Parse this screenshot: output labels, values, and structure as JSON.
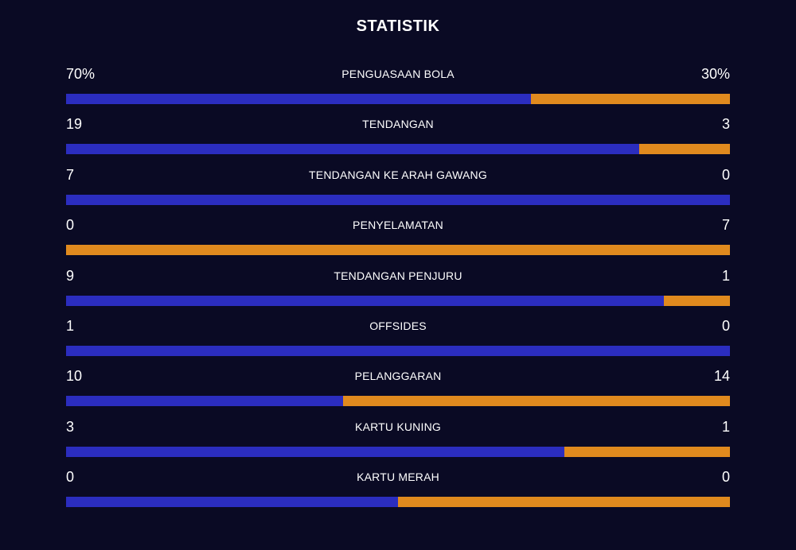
{
  "title": "STATISTIK",
  "colors": {
    "background": "#0a0a24",
    "home": "#2b2dbf",
    "away": "#e08a1e",
    "text": "#ffffff"
  },
  "stats": [
    {
      "label": "PENGUASAAN BOLA",
      "home": "70%",
      "away": "30%",
      "home_share": 0.7
    },
    {
      "label": "TENDANGAN",
      "home": "19",
      "away": "3",
      "home_share": 0.8636
    },
    {
      "label": "TENDANGAN KE ARAH GAWANG",
      "home": "7",
      "away": "0",
      "home_share": 1.0
    },
    {
      "label": "PENYELAMATAN",
      "home": "0",
      "away": "7",
      "home_share": 0.0
    },
    {
      "label": "TENDANGAN PENJURU",
      "home": "9",
      "away": "1",
      "home_share": 0.9
    },
    {
      "label": "OFFSIDES",
      "home": "1",
      "away": "0",
      "home_share": 1.0
    },
    {
      "label": "PELANGGARAN",
      "home": "10",
      "away": "14",
      "home_share": 0.4167
    },
    {
      "label": "KARTU KUNING",
      "home": "3",
      "away": "1",
      "home_share": 0.75
    },
    {
      "label": "KARTU MERAH",
      "home": "0",
      "away": "0",
      "home_share": 0.5
    }
  ]
}
